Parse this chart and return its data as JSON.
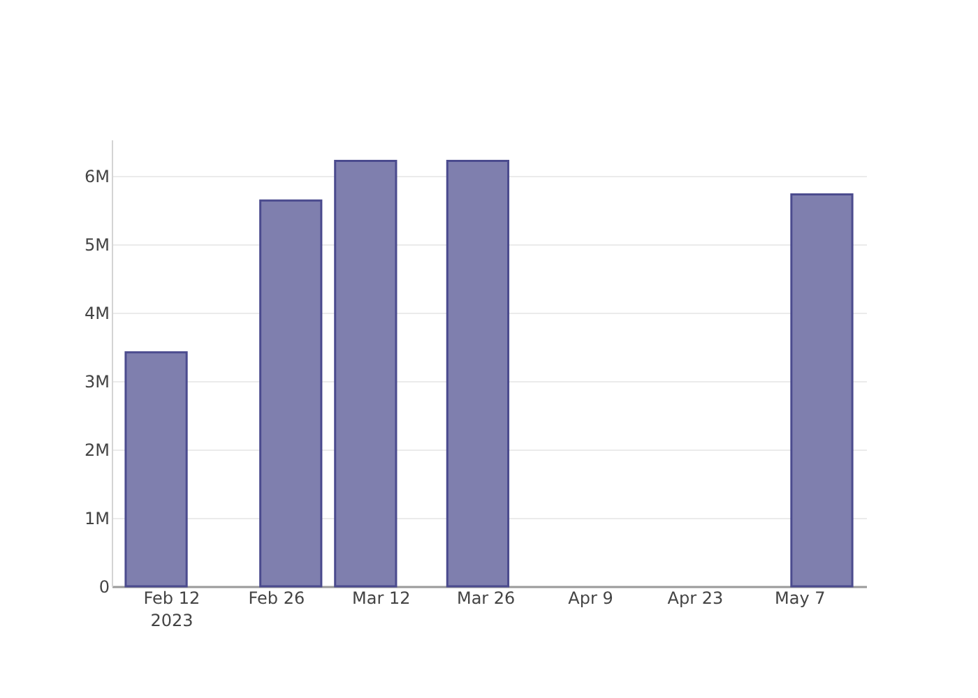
{
  "chart_data": {
    "type": "bar",
    "x": [
      "2023-02-10",
      "2023-02-28",
      "2023-03-10",
      "2023-03-25",
      "2023-05-10"
    ],
    "values": [
      3420000,
      5640000,
      6220000,
      6220000,
      5730000
    ],
    "color": "#7f7fae",
    "xlim": [
      "2023-02-05",
      "2023-05-15"
    ],
    "xticks": [
      {
        "value": "2023-02-12",
        "label": "Feb 12\n2023"
      },
      {
        "value": "2023-02-26",
        "label": "Feb 26"
      },
      {
        "value": "2023-03-12",
        "label": "Mar 12"
      },
      {
        "value": "2023-03-26",
        "label": "Mar 26"
      },
      {
        "value": "2023-04-09",
        "label": "Apr 9"
      },
      {
        "value": "2023-04-23",
        "label": "Apr 23"
      },
      {
        "value": "2023-05-07",
        "label": "May 7"
      }
    ],
    "ylim": [
      0,
      6530000
    ],
    "yticks": [
      0,
      {
        "value": 1000000,
        "label": "1M"
      },
      {
        "value": 2000000,
        "label": "2M"
      },
      {
        "value": 3000000,
        "label": "3M"
      },
      {
        "value": 4000000,
        "label": "4M"
      },
      {
        "value": 5000000,
        "label": "5M"
      },
      {
        "value": 6000000,
        "label": "6M"
      }
    ],
    "grid": "y"
  }
}
